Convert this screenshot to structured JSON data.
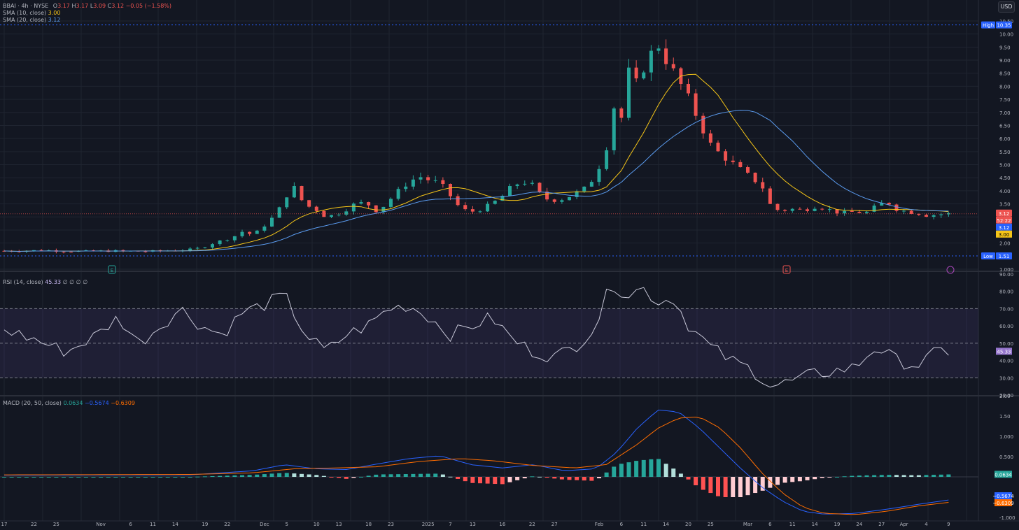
{
  "currency_button": "USD",
  "legend": {
    "symbol_line": "BBAI · 4h · NYSE",
    "open_label": "O",
    "open": "3.17",
    "high_label": "H",
    "high": "3.17",
    "low_label": "L",
    "low": "3.09",
    "close_label": "C",
    "close": "3.12",
    "change": "−0.05 (−1.58%)",
    "sma10_label": "SMA (10, close)",
    "sma10_value": "3.00",
    "sma20_label": "SMA (20, close)",
    "sma20_value": "3.12",
    "rsi_label": "RSI (14, close)",
    "rsi_value": "45.33",
    "rsi_extra": "∅ ∅ ∅ ∅",
    "macd_label": "MACD (20, 50, close)",
    "macd_hist": "0.0634",
    "macd_line": "−0.5674",
    "macd_signal": "−0.6309"
  },
  "colors": {
    "background": "#131722",
    "grid": "#1f2430",
    "up": "#26a69a",
    "down": "#ef5350",
    "sma10": "#f5c518",
    "sma20": "#5b9cf0",
    "rsi": "#c8c8d8",
    "rsi_band": "#7e57c2",
    "macd": "#2962ff",
    "signal": "#ff6d00",
    "axis_text": "#b2b5be"
  },
  "chart_data": [
    {
      "type": "candlestick",
      "title": "BBAI · 4h · NYSE",
      "y_ticks": [
        "10.50",
        "10.00",
        "9.50",
        "9.00",
        "8.50",
        "8.00",
        "7.50",
        "7.00",
        "6.50",
        "6.00",
        "5.50",
        "5.00",
        "4.50",
        "4.00",
        "3.50",
        "3.00",
        "2.50",
        "2.00",
        "1.000"
      ],
      "ylim": [
        1.0,
        10.5
      ],
      "high_label": "High",
      "high_value": "10.35",
      "low_label": "Low",
      "low_value": "1.51",
      "last_price": "3.12",
      "countdown": "52:22",
      "sma10_last": "3.00",
      "sma20_last": "3.12",
      "close_path": [
        [
          0,
          1.7
        ],
        [
          4,
          1.72
        ],
        [
          8,
          1.68
        ],
        [
          10,
          1.7
        ],
        [
          14,
          1.68
        ],
        [
          18,
          1.75
        ],
        [
          19,
          1.82
        ],
        [
          20,
          1.98
        ],
        [
          21,
          2.1
        ],
        [
          22,
          2.22
        ],
        [
          23,
          2.45
        ],
        [
          24,
          2.3
        ],
        [
          25,
          2.65
        ],
        [
          26,
          3.02
        ],
        [
          27,
          3.6
        ],
        [
          27.7,
          4.3
        ],
        [
          28.3,
          3.85
        ],
        [
          29,
          3.45
        ],
        [
          30,
          3.3
        ],
        [
          31,
          3.0
        ],
        [
          32,
          3.1
        ],
        [
          33,
          3.3
        ],
        [
          34,
          3.55
        ],
        [
          35,
          3.5
        ],
        [
          36,
          3.2
        ],
        [
          37,
          3.6
        ],
        [
          38,
          4.0
        ],
        [
          39,
          4.35
        ],
        [
          40,
          4.55
        ],
        [
          41,
          4.4
        ],
        [
          42,
          4.3
        ],
        [
          43,
          3.8
        ],
        [
          44,
          3.3
        ],
        [
          45,
          3.2
        ],
        [
          46,
          3.3
        ],
        [
          47,
          3.5
        ],
        [
          48,
          3.8
        ],
        [
          49,
          4.2
        ],
        [
          50,
          4.35
        ],
        [
          51,
          4.2
        ],
        [
          52,
          3.7
        ],
        [
          53,
          3.65
        ],
        [
          54,
          3.7
        ],
        [
          55,
          3.9
        ],
        [
          56,
          4.1
        ],
        [
          57,
          4.6
        ],
        [
          58,
          5.6
        ],
        [
          58.8,
          7.3
        ],
        [
          59.6,
          6.7
        ],
        [
          60.3,
          8.9
        ],
        [
          61,
          8.0
        ],
        [
          61.7,
          8.8
        ],
        [
          62.4,
          9.3
        ],
        [
          63,
          9.6
        ],
        [
          63.6,
          9.1
        ],
        [
          64.3,
          8.7
        ],
        [
          65,
          8.2
        ],
        [
          66,
          7.5
        ],
        [
          67,
          6.6
        ],
        [
          68,
          5.8
        ],
        [
          69,
          5.4
        ],
        [
          70,
          5.1
        ],
        [
          71,
          4.8
        ],
        [
          72,
          4.5
        ],
        [
          73,
          4.2
        ],
        [
          74,
          3.3
        ],
        [
          75,
          3.25
        ],
        [
          76,
          3.3
        ],
        [
          77,
          3.25
        ],
        [
          78,
          3.4
        ],
        [
          79,
          3.35
        ],
        [
          80,
          3.2
        ],
        [
          81,
          3.15
        ],
        [
          82,
          3.2
        ],
        [
          83,
          3.15
        ],
        [
          84,
          3.4
        ],
        [
          85,
          3.6
        ],
        [
          86,
          3.3
        ],
        [
          87,
          3.2
        ],
        [
          88,
          3.15
        ],
        [
          89,
          3.05
        ],
        [
          90,
          3.1
        ],
        [
          91,
          3.12
        ]
      ]
    },
    {
      "type": "line",
      "title": "RSI (14, close)",
      "y_ticks": [
        "90.00",
        "80.00",
        "70.00",
        "60.00",
        "50.00",
        "40.00",
        "30.00",
        "20.00"
      ],
      "ylim": [
        20,
        90
      ],
      "bands": [
        30,
        50,
        70
      ],
      "last_value": "45.33",
      "path": [
        [
          0,
          58
        ],
        [
          3,
          52
        ],
        [
          6,
          45
        ],
        [
          9,
          55
        ],
        [
          11,
          65
        ],
        [
          13,
          50
        ],
        [
          15,
          60
        ],
        [
          17,
          70
        ],
        [
          19,
          60
        ],
        [
          21,
          55
        ],
        [
          23,
          68
        ],
        [
          25,
          72
        ],
        [
          27,
          78
        ],
        [
          29,
          55
        ],
        [
          31,
          45
        ],
        [
          33,
          55
        ],
        [
          35,
          60
        ],
        [
          37,
          70
        ],
        [
          39,
          72
        ],
        [
          41,
          65
        ],
        [
          43,
          55
        ],
        [
          45,
          60
        ],
        [
          47,
          65
        ],
        [
          49,
          52
        ],
        [
          51,
          45
        ],
        [
          53,
          42
        ],
        [
          55,
          48
        ],
        [
          57,
          60
        ],
        [
          58.5,
          85
        ],
        [
          60,
          78
        ],
        [
          61.5,
          82
        ],
        [
          63,
          74
        ],
        [
          64.5,
          76
        ],
        [
          66,
          60
        ],
        [
          68,
          48
        ],
        [
          70,
          40
        ],
        [
          72,
          35
        ],
        [
          74,
          25
        ],
        [
          76,
          28
        ],
        [
          78,
          32
        ],
        [
          80,
          34
        ],
        [
          82,
          36
        ],
        [
          84,
          48
        ],
        [
          86,
          40
        ],
        [
          88,
          37
        ],
        [
          90,
          45.33
        ]
      ]
    },
    {
      "type": "macd",
      "title": "MACD (20, 50, close)",
      "y_ticks": [
        "2.00",
        "1.50",
        "1.000",
        "0.500",
        "-1.000"
      ],
      "ylim": [
        -1.0,
        2.0
      ],
      "histogram_last": "0.0634",
      "macd_last": "−0.5674",
      "signal_last": "−0.6309",
      "macd_path": [
        [
          0,
          0.04
        ],
        [
          18,
          0.05
        ],
        [
          24,
          0.15
        ],
        [
          27,
          0.3
        ],
        [
          30,
          0.2
        ],
        [
          33,
          0.18
        ],
        [
          36,
          0.32
        ],
        [
          39,
          0.45
        ],
        [
          42,
          0.52
        ],
        [
          45,
          0.3
        ],
        [
          48,
          0.22
        ],
        [
          51,
          0.3
        ],
        [
          54,
          0.15
        ],
        [
          57,
          0.2
        ],
        [
          59,
          0.6
        ],
        [
          61,
          1.2
        ],
        [
          63,
          1.65
        ],
        [
          65,
          1.6
        ],
        [
          67,
          1.2
        ],
        [
          69,
          0.7
        ],
        [
          71,
          0.2
        ],
        [
          73,
          -0.25
        ],
        [
          75,
          -0.6
        ],
        [
          77,
          -0.85
        ],
        [
          79,
          -0.92
        ],
        [
          82,
          -0.9
        ],
        [
          85,
          -0.8
        ],
        [
          88,
          -0.68
        ],
        [
          91,
          -0.57
        ]
      ],
      "signal_path": [
        [
          0,
          0.05
        ],
        [
          18,
          0.06
        ],
        [
          24,
          0.1
        ],
        [
          28,
          0.2
        ],
        [
          32,
          0.22
        ],
        [
          36,
          0.25
        ],
        [
          40,
          0.38
        ],
        [
          44,
          0.45
        ],
        [
          47,
          0.4
        ],
        [
          51,
          0.28
        ],
        [
          55,
          0.22
        ],
        [
          58,
          0.3
        ],
        [
          61,
          0.8
        ],
        [
          63,
          1.2
        ],
        [
          65,
          1.45
        ],
        [
          67,
          1.48
        ],
        [
          69,
          1.2
        ],
        [
          71,
          0.7
        ],
        [
          73,
          0.1
        ],
        [
          75,
          -0.4
        ],
        [
          77,
          -0.75
        ],
        [
          79,
          -0.9
        ],
        [
          82,
          -0.93
        ],
        [
          85,
          -0.85
        ],
        [
          88,
          -0.72
        ],
        [
          91,
          -0.63
        ]
      ],
      "histogram_path": [
        [
          0,
          0.0
        ],
        [
          18,
          0.0
        ],
        [
          24,
          0.05
        ],
        [
          27,
          0.1
        ],
        [
          30,
          0.05
        ],
        [
          33,
          -0.05
        ],
        [
          36,
          0.06
        ],
        [
          39,
          0.07
        ],
        [
          42,
          0.08
        ],
        [
          45,
          -0.15
        ],
        [
          48,
          -0.18
        ],
        [
          51,
          0.02
        ],
        [
          54,
          -0.07
        ],
        [
          57,
          -0.1
        ],
        [
          59,
          0.3
        ],
        [
          61,
          0.4
        ],
        [
          63,
          0.45
        ],
        [
          65,
          0.12
        ],
        [
          67,
          -0.28
        ],
        [
          69,
          -0.5
        ],
        [
          71,
          -0.5
        ],
        [
          73,
          -0.35
        ],
        [
          75,
          -0.15
        ],
        [
          77,
          -0.1
        ],
        [
          79,
          -0.02
        ],
        [
          82,
          0.03
        ],
        [
          85,
          0.05
        ],
        [
          88,
          0.04
        ],
        [
          91,
          0.06
        ]
      ]
    }
  ],
  "x_axis": [
    {
      "label": "17",
      "i": 0
    },
    {
      "label": "22",
      "i": 4
    },
    {
      "label": "25",
      "i": 7
    },
    {
      "label": "Nov",
      "i": 13
    },
    {
      "label": "6",
      "i": 17
    },
    {
      "label": "11",
      "i": 20
    },
    {
      "label": "14",
      "i": 23
    },
    {
      "label": "19",
      "i": 27
    },
    {
      "label": "22",
      "i": 30
    },
    {
      "label": "Dec",
      "i": 35
    },
    {
      "label": "5",
      "i": 38
    },
    {
      "label": "10",
      "i": 42
    },
    {
      "label": "13",
      "i": 45
    },
    {
      "label": "18",
      "i": 49
    },
    {
      "label": "23",
      "i": 52
    },
    {
      "label": "2025",
      "i": 57
    },
    {
      "label": "7",
      "i": 60
    },
    {
      "label": "13",
      "i": 63
    },
    {
      "label": "16",
      "i": 67
    },
    {
      "label": "22",
      "i": 71
    },
    {
      "label": "27",
      "i": 74
    },
    {
      "label": "Feb",
      "i": 80
    },
    {
      "label": "6",
      "i": 83
    },
    {
      "label": "11",
      "i": 86
    },
    {
      "label": "14",
      "i": 89
    },
    {
      "label": "20",
      "i": 92
    },
    {
      "label": "25",
      "i": 95
    },
    {
      "label": "Mar",
      "i": 100
    },
    {
      "label": "6",
      "i": 103
    },
    {
      "label": "11",
      "i": 106
    },
    {
      "label": "14",
      "i": 109
    },
    {
      "label": "19",
      "i": 112
    },
    {
      "label": "24",
      "i": 115
    },
    {
      "label": "27",
      "i": 118
    },
    {
      "label": "Apr",
      "i": 121
    },
    {
      "label": "4",
      "i": 124
    },
    {
      "label": "9",
      "i": 127
    }
  ]
}
